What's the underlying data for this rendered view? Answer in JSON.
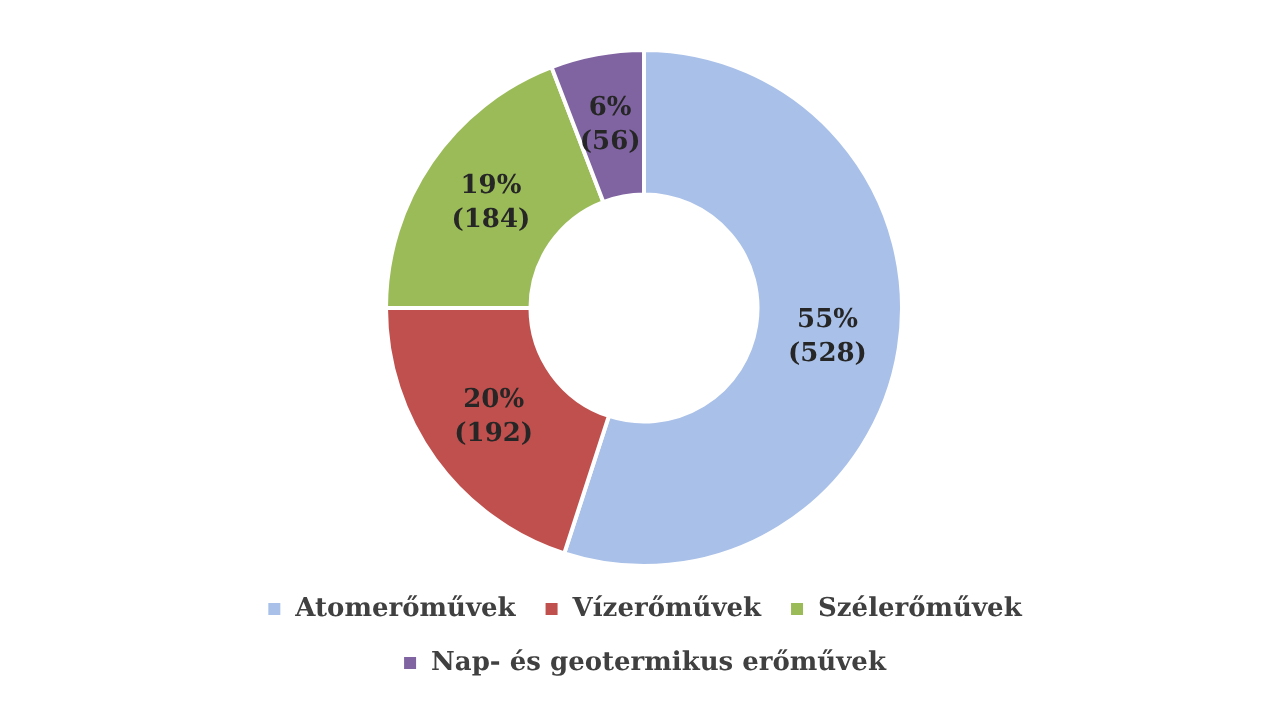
{
  "chart_data": {
    "type": "donut",
    "categories": [
      "Atomerőművek",
      "Vízerőművek",
      "Szélerőművek",
      "Nap- és geotermikus erőművek"
    ],
    "values": [
      528,
      192,
      184,
      56
    ],
    "colors": [
      "#a9c0e8",
      "#c0504d",
      "#9bbb59",
      "#8064a2"
    ],
    "value_labels": [
      "55%\n(528)",
      "20%\n(192)",
      "19%\n(184)",
      "6%\n(56)"
    ],
    "legend": "bottom"
  }
}
